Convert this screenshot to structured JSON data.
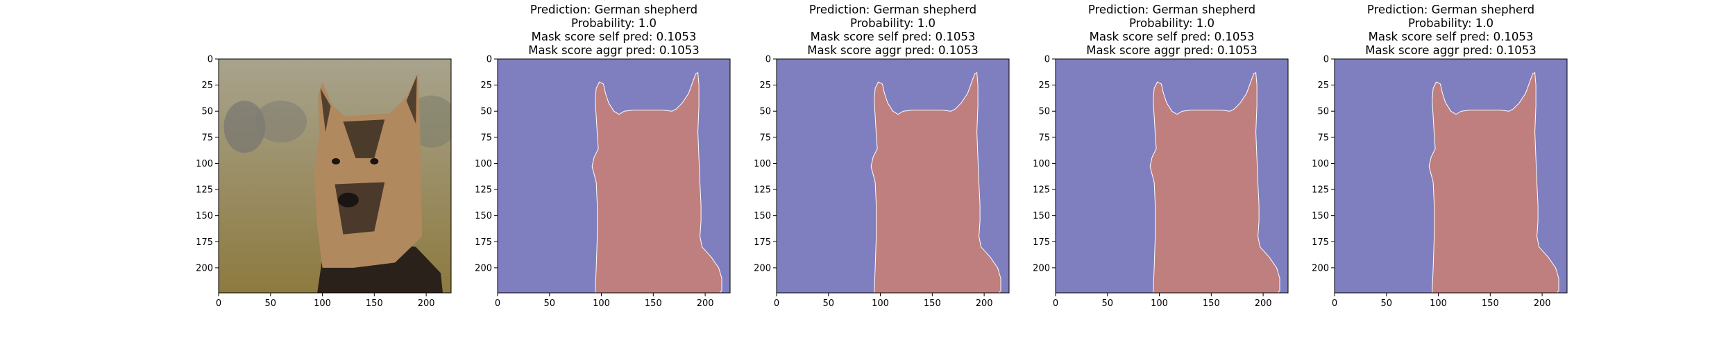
{
  "figure": {
    "background": "#ffffff",
    "axis_color": "#000000",
    "mask_background_color": "#7f7fbf",
    "mask_foreground_color": "#bf7f7f",
    "photo_colors": {
      "bg_top": "#a8a38d",
      "bg_bottom": "#8d7a3f",
      "fur_tan": "#b1895e",
      "fur_dark": "#2a211a",
      "nose": "#1a1512"
    }
  },
  "chart_data": [
    {
      "type": "image",
      "subplot": "input-image",
      "title": [],
      "content": "photo of a German shepherd",
      "xlim": [
        0,
        224
      ],
      "ylim": [
        224,
        0
      ],
      "xticks": [
        0,
        50,
        100,
        150,
        200
      ],
      "yticks": [
        0,
        25,
        50,
        75,
        100,
        125,
        150,
        175,
        200
      ]
    },
    {
      "type": "image",
      "subplot": "mask-1",
      "title": [
        "Prediction: German shepherd",
        "Probability: 1.0",
        "Mask score self pred: 0.1053",
        "Mask score aggr pred: 0.1053"
      ],
      "content": "segmentation mask",
      "xlim": [
        0,
        224
      ],
      "ylim": [
        224,
        0
      ],
      "xticks": [
        0,
        50,
        100,
        150,
        200
      ],
      "yticks": [
        0,
        25,
        50,
        75,
        100,
        125,
        150,
        175,
        200
      ]
    },
    {
      "type": "image",
      "subplot": "mask-2",
      "title": [
        "Prediction: German shepherd",
        "Probability: 1.0",
        "Mask score self pred: 0.1053",
        "Mask score aggr pred: 0.1053"
      ],
      "content": "segmentation mask",
      "xlim": [
        0,
        224
      ],
      "ylim": [
        224,
        0
      ],
      "xticks": [
        0,
        50,
        100,
        150,
        200
      ],
      "yticks": [
        0,
        25,
        50,
        75,
        100,
        125,
        150,
        175,
        200
      ]
    },
    {
      "type": "image",
      "subplot": "mask-3",
      "title": [
        "Prediction: German shepherd",
        "Probability: 1.0",
        "Mask score self pred: 0.1053",
        "Mask score aggr pred: 0.1053"
      ],
      "content": "segmentation mask",
      "xlim": [
        0,
        224
      ],
      "ylim": [
        224,
        0
      ],
      "xticks": [
        0,
        50,
        100,
        150,
        200
      ],
      "yticks": [
        0,
        25,
        50,
        75,
        100,
        125,
        150,
        175,
        200
      ]
    },
    {
      "type": "image",
      "subplot": "mask-4",
      "title": [
        "Prediction: German shepherd",
        "Probability: 1.0",
        "Mask score self pred: 0.1053",
        "Mask score aggr pred: 0.1053"
      ],
      "content": "segmentation mask",
      "xlim": [
        0,
        224
      ],
      "ylim": [
        224,
        0
      ],
      "xticks": [
        0,
        50,
        100,
        150,
        200
      ],
      "yticks": [
        0,
        25,
        50,
        75,
        100,
        125,
        150,
        175,
        200
      ]
    }
  ],
  "mask_outline": [
    [
      94,
      224
    ],
    [
      95,
      200
    ],
    [
      96,
      170
    ],
    [
      96,
      140
    ],
    [
      95,
      118
    ],
    [
      91,
      103
    ],
    [
      93,
      94
    ],
    [
      97,
      86
    ],
    [
      96,
      72
    ],
    [
      95,
      55
    ],
    [
      94,
      40
    ],
    [
      95,
      28
    ],
    [
      98,
      22
    ],
    [
      102,
      24
    ],
    [
      104,
      33
    ],
    [
      107,
      42
    ],
    [
      112,
      50
    ],
    [
      117,
      53
    ],
    [
      122,
      50
    ],
    [
      130,
      49
    ],
    [
      140,
      49
    ],
    [
      150,
      49
    ],
    [
      160,
      49
    ],
    [
      168,
      50
    ],
    [
      172,
      48
    ],
    [
      178,
      42
    ],
    [
      184,
      33
    ],
    [
      188,
      22
    ],
    [
      191,
      14
    ],
    [
      193,
      13
    ],
    [
      194,
      25
    ],
    [
      194,
      45
    ],
    [
      193,
      70
    ],
    [
      194,
      95
    ],
    [
      195,
      120
    ],
    [
      196,
      140
    ],
    [
      196,
      155
    ],
    [
      195,
      170
    ],
    [
      197,
      180
    ],
    [
      206,
      190
    ],
    [
      213,
      200
    ],
    [
      216,
      210
    ],
    [
      216,
      222
    ],
    [
      214,
      224
    ]
  ]
}
